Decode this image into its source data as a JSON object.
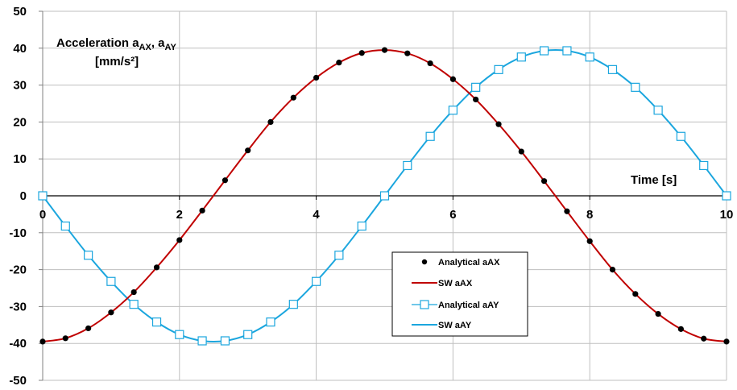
{
  "chart_data": {
    "type": "line",
    "title": "",
    "xlabel": "Time [s]",
    "ylabel": {
      "line1_main": "Acceleration a",
      "line1_sub1": "AX",
      "line1_sep": ", a",
      "line1_sub2": "AY",
      "line2": "[mm/s²]"
    },
    "xlim": [
      0,
      10
    ],
    "ylim": [
      -50,
      50
    ],
    "x_ticks": [
      "0",
      "2",
      "4",
      "6",
      "8",
      "10"
    ],
    "y_ticks": [
      "50",
      "40",
      "30",
      "20",
      "10",
      "0",
      "-10",
      "-20",
      "-30",
      "-40",
      "-50"
    ],
    "grid": true,
    "legend_position": "lower-center-right",
    "colors": {
      "aAX": "#c00000",
      "aAY": "#1ba6de",
      "marker_aAX": "#000000",
      "grid": "#bfbfbf"
    },
    "series": [
      {
        "name": "Analytical aAX",
        "style": "markers-filled-circle",
        "x": [
          0,
          0.333,
          0.667,
          1.0,
          1.333,
          1.667,
          2.0,
          2.333,
          2.667,
          3.0,
          3.333,
          3.667,
          4.0,
          4.333,
          4.667,
          5.0,
          5.333,
          5.667,
          6.0,
          6.333,
          6.667,
          7.0,
          7.333,
          7.667,
          8.0,
          8.333,
          8.667,
          9.0,
          9.333,
          9.667,
          10.0
        ],
        "y": [
          -39.5,
          -38.6,
          -35.9,
          -31.6,
          -26.1,
          -19.4,
          -12.0,
          -4.0,
          4.2,
          12.3,
          20.0,
          26.6,
          32.0,
          36.1,
          38.7,
          39.5,
          38.6,
          35.9,
          31.6,
          26.1,
          19.4,
          12.0,
          4.0,
          -4.2,
          -12.3,
          -20.0,
          -26.6,
          -32.0,
          -36.1,
          -38.7,
          -39.5
        ]
      },
      {
        "name": "SW aAX",
        "style": "line",
        "function": "-39.5*cos(2*pi*t/10)"
      },
      {
        "name": "Analytical aAY",
        "style": "markers-open-square-with-line",
        "x": [
          0,
          0.333,
          0.667,
          1.0,
          1.333,
          1.667,
          2.0,
          2.333,
          2.667,
          3.0,
          3.333,
          3.667,
          4.0,
          4.333,
          4.667,
          5.0,
          5.333,
          5.667,
          6.0,
          6.333,
          6.667,
          7.0,
          7.333,
          7.667,
          8.0,
          8.333,
          8.667,
          9.0,
          9.333,
          9.667,
          10.0
        ],
        "y": [
          0,
          -8.2,
          -16.1,
          -23.2,
          -29.4,
          -34.2,
          -37.6,
          -39.3,
          -39.3,
          -37.6,
          -34.2,
          -29.4,
          -23.2,
          -16.1,
          -8.2,
          0,
          8.2,
          16.1,
          23.2,
          29.4,
          34.2,
          37.6,
          39.3,
          39.3,
          37.6,
          34.2,
          29.4,
          23.2,
          16.1,
          8.2,
          0
        ]
      },
      {
        "name": "SW aAY",
        "style": "line",
        "function": "-39.5*sin(2*pi*t/10)"
      }
    ]
  }
}
